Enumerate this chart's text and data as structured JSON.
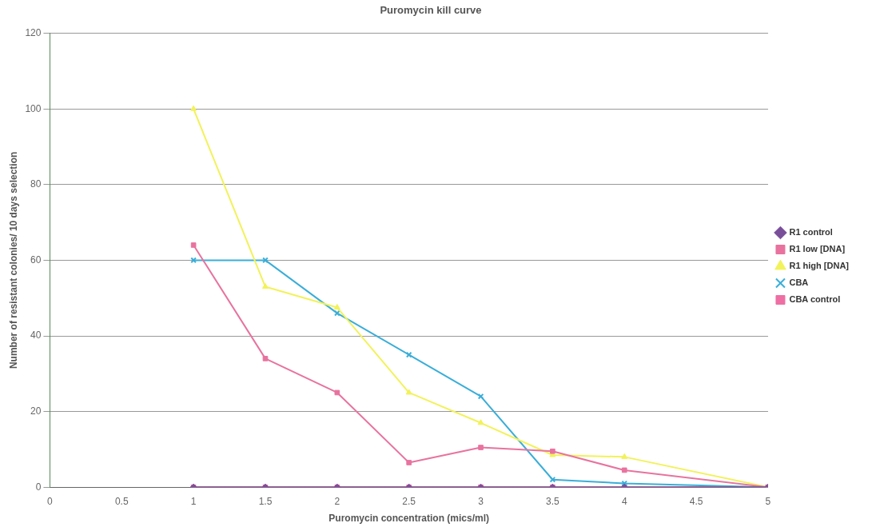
{
  "chart_data": {
    "type": "line",
    "title": "Puromycin kill curve",
    "xlabel": "Puromycin concentration (mics/ml)",
    "ylabel": "Number of resistant colonies/ 10 days selection",
    "x": [
      1,
      1.5,
      2,
      2.5,
      3,
      3.5,
      4,
      5
    ],
    "xlim": [
      0,
      5
    ],
    "xticks": [
      0,
      0.5,
      1,
      1.5,
      2,
      2.5,
      3,
      3.5,
      4,
      4.5,
      5
    ],
    "ylim": [
      0,
      120
    ],
    "yticks": [
      0,
      20,
      40,
      60,
      80,
      100,
      120
    ],
    "grid": "y",
    "legend": "right",
    "series": [
      {
        "name": "R1 control",
        "color": "#7a4f9a",
        "marker": "diamond",
        "values": [
          0,
          0,
          0,
          0,
          0,
          0,
          0,
          0
        ]
      },
      {
        "name": "R1 low [DNA]",
        "color": "#e8739e",
        "marker": "square",
        "values": [
          64,
          34,
          25,
          6.5,
          10.5,
          9.5,
          4.5,
          0
        ]
      },
      {
        "name": "R1 high [DNA]",
        "color": "#f2f25a",
        "marker": "triangle",
        "values": [
          100,
          53,
          47.5,
          25,
          17,
          8.5,
          8,
          0
        ]
      },
      {
        "name": "CBA",
        "color": "#3aaed8",
        "marker": "cross",
        "values": [
          60,
          60,
          46,
          35,
          24,
          2,
          1,
          0
        ]
      },
      {
        "name": "CBA control",
        "color": "#ee6fa3",
        "marker": "square",
        "values": [
          0,
          0,
          0,
          0,
          0,
          0,
          0,
          0
        ]
      }
    ]
  }
}
